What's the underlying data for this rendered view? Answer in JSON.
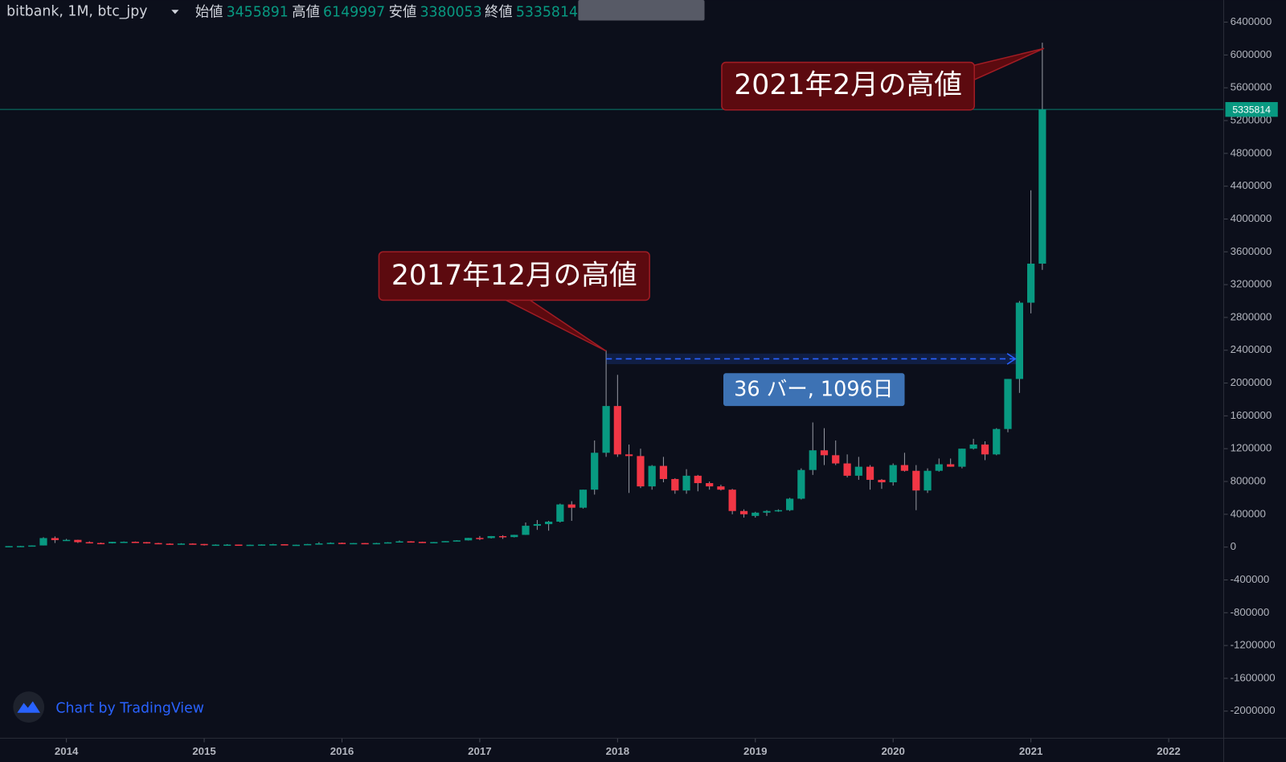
{
  "chart_data": {
    "type": "candlestick",
    "title": "bitbank, 1M, btc_jpy",
    "labels": {
      "open": "始値",
      "high": "高値",
      "low": "安値",
      "close": "終値"
    },
    "x": [
      2013.583,
      2013.667,
      2013.75,
      2013.833,
      2013.917,
      2014,
      2014.083,
      2014.167,
      2014.25,
      2014.333,
      2014.417,
      2014.5,
      2014.583,
      2014.667,
      2014.75,
      2014.833,
      2014.917,
      2015,
      2015.083,
      2015.167,
      2015.25,
      2015.333,
      2015.417,
      2015.5,
      2015.583,
      2015.667,
      2015.75,
      2015.833,
      2015.917,
      2016,
      2016.083,
      2016.167,
      2016.25,
      2016.333,
      2016.417,
      2016.5,
      2016.583,
      2016.667,
      2016.75,
      2016.833,
      2016.917,
      2017,
      2017.083,
      2017.167,
      2017.25,
      2017.333,
      2017.417,
      2017.5,
      2017.583,
      2017.667,
      2017.75,
      2017.833,
      2017.917,
      2018,
      2018.083,
      2018.167,
      2018.25,
      2018.333,
      2018.417,
      2018.5,
      2018.583,
      2018.667,
      2018.75,
      2018.833,
      2018.917,
      2019,
      2019.083,
      2019.167,
      2019.25,
      2019.333,
      2019.417,
      2019.5,
      2019.583,
      2019.667,
      2019.75,
      2019.833,
      2019.917,
      2020,
      2020.083,
      2020.167,
      2020.25,
      2020.333,
      2020.417,
      2020.5,
      2020.583,
      2020.667,
      2020.75,
      2020.833,
      2020.917,
      2021,
      2021.083
    ],
    "open": [
      10000,
      12000,
      13000,
      20000,
      110000,
      85000,
      88000,
      60000,
      50000,
      46000,
      64000,
      65000,
      60000,
      49000,
      42000,
      39000,
      43000,
      38000,
      27000,
      30000,
      30500,
      28000,
      28500,
      32000,
      35000,
      28000,
      28500,
      37000,
      45000,
      52000,
      44000,
      49000,
      47000,
      49000,
      58000,
      70000,
      64000,
      59000,
      61000,
      73000,
      82000,
      112000,
      110000,
      134000,
      122000,
      149000,
      260000,
      280000,
      310000,
      520000,
      480000,
      700000,
      1150000,
      1720000,
      1130000,
      1110000,
      740000,
      990000,
      830000,
      690000,
      870000,
      780000,
      740000,
      700000,
      440000,
      380000,
      420000,
      440000,
      450000,
      590000,
      940000,
      1180000,
      1120000,
      1020000,
      870000,
      980000,
      820000,
      790000,
      1000000,
      930000,
      690000,
      930000,
      1010000,
      980000,
      1200000,
      1250000,
      1130000,
      1440000,
      2050000,
      2980000,
      3455891
    ],
    "high": [
      12000,
      14000,
      21000,
      120000,
      130000,
      100000,
      90000,
      70000,
      55000,
      65000,
      68000,
      68000,
      62000,
      52000,
      46000,
      47000,
      46000,
      38000,
      33000,
      36000,
      31000,
      30000,
      33000,
      39000,
      35000,
      30000,
      38000,
      60000,
      57000,
      55000,
      50000,
      50000,
      52000,
      60000,
      80000,
      72000,
      66000,
      62000,
      73000,
      84000,
      112000,
      135000,
      135000,
      145000,
      150000,
      300000,
      330000,
      320000,
      530000,
      560000,
      700000,
      1300000,
      2400000,
      2100000,
      1250000,
      1200000,
      1000000,
      1100000,
      840000,
      950000,
      880000,
      800000,
      760000,
      710000,
      460000,
      430000,
      450000,
      460000,
      600000,
      960000,
      1520000,
      1450000,
      1300000,
      1130000,
      1100000,
      1000000,
      830000,
      1020000,
      1150000,
      1000000,
      960000,
      1080000,
      1080000,
      1200000,
      1320000,
      1290000,
      1450000,
      2050000,
      3000000,
      4350000,
      6149997
    ],
    "low": [
      9000,
      11000,
      12000,
      20000,
      50000,
      75000,
      50000,
      45000,
      35000,
      44000,
      55000,
      57000,
      44000,
      39000,
      31000,
      36000,
      36000,
      19000,
      24000,
      28000,
      25000,
      27000,
      27000,
      31000,
      25000,
      27000,
      28000,
      37000,
      43000,
      42000,
      42000,
      45000,
      46000,
      48000,
      55000,
      60000,
      50000,
      57000,
      60000,
      70000,
      80000,
      85000,
      105000,
      100000,
      118000,
      148000,
      210000,
      200000,
      300000,
      320000,
      470000,
      640000,
      1100000,
      1100000,
      660000,
      720000,
      700000,
      790000,
      650000,
      650000,
      680000,
      700000,
      690000,
      400000,
      360000,
      360000,
      380000,
      430000,
      440000,
      580000,
      880000,
      1000000,
      1000000,
      850000,
      820000,
      700000,
      710000,
      750000,
      920000,
      450000,
      660000,
      920000,
      980000,
      960000,
      1190000,
      1060000,
      1120000,
      1400000,
      1880000,
      2850000,
      3380053
    ],
    "close": [
      12000,
      13000,
      20000,
      110000,
      85000,
      88000,
      60000,
      50000,
      46000,
      64000,
      65000,
      60000,
      49000,
      42000,
      39000,
      43000,
      38000,
      27000,
      30000,
      30500,
      28000,
      28500,
      32000,
      35000,
      28000,
      28500,
      37000,
      45000,
      52000,
      44000,
      49000,
      47000,
      49000,
      58000,
      70000,
      64000,
      59000,
      61000,
      73000,
      82000,
      112000,
      110000,
      134000,
      122000,
      149000,
      260000,
      280000,
      310000,
      520000,
      480000,
      700000,
      1150000,
      1720000,
      1130000,
      1110000,
      740000,
      990000,
      830000,
      690000,
      870000,
      780000,
      740000,
      700000,
      440000,
      400000,
      420000,
      440000,
      450000,
      590000,
      940000,
      1180000,
      1120000,
      1020000,
      870000,
      980000,
      820000,
      790000,
      1000000,
      930000,
      690000,
      930000,
      1010000,
      980000,
      1200000,
      1250000,
      1130000,
      1440000,
      2050000,
      2980000,
      3455891,
      5335814
    ],
    "up_color": "#089981",
    "down_color": "#f23645",
    "xlim": [
      2013.518,
      2022.399
    ],
    "xticks": [
      2014,
      2015,
      2016,
      2017,
      2018,
      2019,
      2020,
      2021,
      2022
    ],
    "ylim": [
      -2330000,
      6670000
    ],
    "yticks": [
      -2000000,
      -1600000,
      -1200000,
      -800000,
      -400000,
      0,
      400000,
      800000,
      1200000,
      1600000,
      2000000,
      2400000,
      2800000,
      3200000,
      3600000,
      4000000,
      4400000,
      4800000,
      5200000,
      5600000,
      6000000,
      6400000
    ],
    "annotations": [
      "2017年12月の高値",
      "2021年2月の高値"
    ],
    "measure_label": "36 バー, 1096日",
    "credit": "Chart by TradingView"
  }
}
